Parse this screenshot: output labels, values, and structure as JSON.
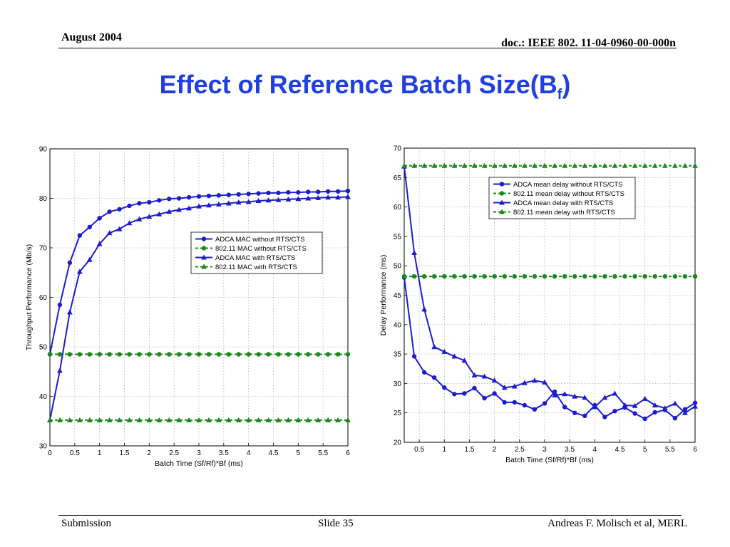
{
  "header": {
    "date": "August 2004",
    "doc": "doc.: IEEE 802. 11-04-0960-00-000n"
  },
  "title": {
    "main": "Effect of Reference Batch Size(B",
    "sub": "f",
    "close": ")"
  },
  "footer": {
    "left": "Submission",
    "center": "Slide 35",
    "right": "Andreas F. Molisch et al, MERL"
  },
  "colors": {
    "title": "#1f3fe0",
    "blue_series": "#1c1ccf",
    "green_series": "#1a8a1a"
  },
  "chart_data": [
    {
      "type": "line",
      "xlabel": "Batch Time (Sf/Rf)*Bf (ms)",
      "ylabel": "Throughput Performance (Mb/s)",
      "xlim": [
        0,
        6
      ],
      "ylim": [
        30,
        90
      ],
      "xticks": [
        0,
        0.5,
        1,
        1.5,
        2,
        2.5,
        3,
        3.5,
        4,
        4.5,
        5,
        5.5,
        6
      ],
      "xtick_labels": [
        "0",
        "0.5",
        "1",
        "1.5",
        "2",
        "2.5",
        "3",
        "3.5",
        "4",
        "4.5",
        "5",
        "5.5",
        "6"
      ],
      "yticks": [
        30,
        40,
        50,
        60,
        70,
        80,
        90
      ],
      "ytick_labels": [
        "30",
        "40",
        "50",
        "60",
        "70",
        "80",
        "90"
      ],
      "grid": true,
      "legend_position": "middle-right",
      "x": [
        0,
        0.2,
        0.4,
        0.6,
        0.8,
        1.0,
        1.2,
        1.4,
        1.6,
        1.8,
        2.0,
        2.2,
        2.4,
        2.6,
        2.8,
        3.0,
        3.2,
        3.4,
        3.6,
        3.8,
        4.0,
        4.2,
        4.4,
        4.6,
        4.8,
        5.0,
        5.2,
        5.4,
        5.6,
        5.8,
        6.0
      ],
      "series": [
        {
          "name": "ADCA MAC without RTS/CTS",
          "color": "#1c1ccf",
          "marker": "circle",
          "dash": false,
          "values": [
            48.5,
            58.5,
            67.0,
            72.5,
            74.2,
            76.0,
            77.3,
            77.8,
            78.5,
            79.0,
            79.2,
            79.6,
            79.9,
            80.0,
            80.2,
            80.4,
            80.5,
            80.6,
            80.7,
            80.8,
            80.9,
            81.0,
            81.1,
            81.1,
            81.2,
            81.2,
            81.3,
            81.3,
            81.4,
            81.4,
            81.5
          ]
        },
        {
          "name": "802.11 MAC without RTS/CTS",
          "color": "#1a8a1a",
          "marker": "circle",
          "dash": true,
          "values": [
            48.5,
            48.5,
            48.5,
            48.5,
            48.5,
            48.5,
            48.5,
            48.5,
            48.5,
            48.5,
            48.5,
            48.5,
            48.5,
            48.5,
            48.5,
            48.5,
            48.5,
            48.5,
            48.5,
            48.5,
            48.5,
            48.5,
            48.5,
            48.5,
            48.5,
            48.5,
            48.5,
            48.5,
            48.5,
            48.5,
            48.5
          ]
        },
        {
          "name": "ADCA MAC with RTS/CTS",
          "color": "#1c1ccf",
          "marker": "triangle",
          "dash": false,
          "values": [
            35.2,
            45.2,
            57.0,
            65.2,
            67.6,
            70.8,
            73.0,
            73.8,
            75.0,
            75.8,
            76.3,
            76.8,
            77.3,
            77.7,
            78.0,
            78.4,
            78.6,
            78.8,
            79.0,
            79.2,
            79.3,
            79.5,
            79.6,
            79.7,
            79.8,
            79.9,
            80.0,
            80.1,
            80.2,
            80.2,
            80.3
          ]
        },
        {
          "name": "802.11 MAC with RTS/CTS",
          "color": "#1a8a1a",
          "marker": "triangle",
          "dash": true,
          "values": [
            35.2,
            35.2,
            35.2,
            35.2,
            35.2,
            35.2,
            35.2,
            35.2,
            35.2,
            35.2,
            35.2,
            35.2,
            35.2,
            35.2,
            35.2,
            35.2,
            35.2,
            35.2,
            35.2,
            35.2,
            35.2,
            35.2,
            35.2,
            35.2,
            35.2,
            35.2,
            35.2,
            35.2,
            35.2,
            35.2,
            35.2
          ]
        }
      ]
    },
    {
      "type": "line",
      "xlabel": "Batch Time (Sf/Rf)*Bf (ms)",
      "ylabel": "Delay Performance (ms)",
      "xlim": [
        0.2,
        6
      ],
      "ylim": [
        20,
        70
      ],
      "xticks": [
        0.5,
        1,
        1.5,
        2,
        2.5,
        3,
        3.5,
        4,
        4.5,
        5,
        5.5,
        6
      ],
      "xtick_labels": [
        "0.5",
        "1",
        "1.5",
        "2",
        "2.5",
        "3",
        "3.5",
        "4",
        "4.5",
        "5",
        "5.5",
        "6"
      ],
      "yticks": [
        20,
        25,
        30,
        35,
        40,
        45,
        50,
        55,
        60,
        65,
        70
      ],
      "ytick_labels": [
        "20",
        "25",
        "30",
        "35",
        "40",
        "45",
        "50",
        "55",
        "60",
        "65",
        "70"
      ],
      "grid": true,
      "legend_position": "top-right",
      "x": [
        0.2,
        0.4,
        0.6,
        0.8,
        1.0,
        1.2,
        1.4,
        1.6,
        1.8,
        2.0,
        2.2,
        2.4,
        2.6,
        2.8,
        3.0,
        3.2,
        3.4,
        3.6,
        3.8,
        4.0,
        4.2,
        4.4,
        4.6,
        4.8,
        5.0,
        5.2,
        5.4,
        5.6,
        5.8,
        6.0
      ],
      "series": [
        {
          "name": "ADCA mean delay without RTS/CTS",
          "color": "#1c1ccf",
          "marker": "circle",
          "dash": false,
          "values": [
            48.0,
            34.6,
            31.9,
            31.0,
            29.3,
            28.2,
            28.3,
            29.2,
            27.5,
            28.3,
            26.8,
            26.8,
            26.3,
            25.6,
            26.6,
            28.6,
            26.0,
            25.0,
            24.5,
            26.3,
            24.3,
            25.3,
            25.9,
            24.9,
            24.0,
            25.1,
            25.5,
            24.1,
            25.6,
            26.7
          ]
        },
        {
          "name": "802.11 mean delay without RTS/CTS",
          "color": "#1a8a1a",
          "marker": "circle",
          "dash": true,
          "values": [
            48.2,
            48.2,
            48.2,
            48.2,
            48.2,
            48.2,
            48.2,
            48.2,
            48.2,
            48.2,
            48.2,
            48.2,
            48.2,
            48.2,
            48.2,
            48.2,
            48.2,
            48.2,
            48.2,
            48.2,
            48.2,
            48.2,
            48.2,
            48.2,
            48.2,
            48.2,
            48.2,
            48.2,
            48.2,
            48.2
          ]
        },
        {
          "name": "ADCA mean delay with RTS/CTS",
          "color": "#1c1ccf",
          "marker": "triangle",
          "dash": false,
          "values": [
            66.9,
            52.2,
            42.6,
            36.2,
            35.4,
            34.6,
            33.9,
            31.4,
            31.2,
            30.5,
            29.3,
            29.5,
            30.1,
            30.5,
            30.2,
            28.0,
            28.2,
            27.8,
            27.6,
            26.0,
            27.6,
            28.3,
            26.3,
            26.2,
            27.4,
            26.3,
            25.8,
            26.6,
            25.0,
            26.1
          ]
        },
        {
          "name": "802.11 mean delay with RTS/CTS",
          "color": "#1a8a1a",
          "marker": "triangle",
          "dash": true,
          "values": [
            67.0,
            67.0,
            67.0,
            67.0,
            67.0,
            67.0,
            67.0,
            67.0,
            67.0,
            67.0,
            67.0,
            67.0,
            67.0,
            67.0,
            67.0,
            67.0,
            67.0,
            67.0,
            67.0,
            67.0,
            67.0,
            67.0,
            67.0,
            67.0,
            67.0,
            67.0,
            67.0,
            67.0,
            67.0,
            67.0
          ]
        }
      ]
    }
  ]
}
